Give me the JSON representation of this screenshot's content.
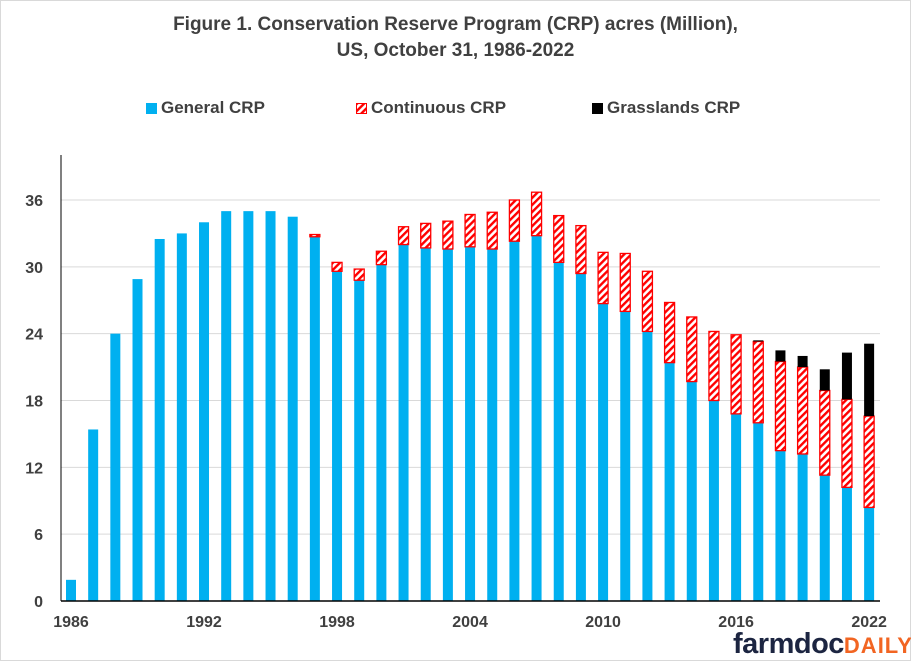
{
  "chart_data": {
    "type": "bar",
    "stacked": true,
    "title": "Figure 1.  Conservation Reserve Program (CRP) acres (Million), US, October 31, 1986-2022",
    "title_lines": [
      "Figure 1.  Conservation Reserve Program (CRP) acres (Million),",
      "US, October 31, 1986-2022"
    ],
    "xlabel": "",
    "ylabel": "",
    "ylim": [
      0,
      40
    ],
    "yticks": [
      0,
      6,
      12,
      18,
      24,
      30,
      36
    ],
    "xtick_labels": [
      "1986",
      "1992",
      "1998",
      "2004",
      "2010",
      "2016",
      "2022"
    ],
    "grid": true,
    "legend_position": "top",
    "categories": [
      1986,
      1987,
      1988,
      1989,
      1990,
      1991,
      1992,
      1993,
      1994,
      1995,
      1996,
      1997,
      1998,
      1999,
      2000,
      2001,
      2002,
      2003,
      2004,
      2005,
      2006,
      2007,
      2008,
      2009,
      2010,
      2011,
      2012,
      2013,
      2014,
      2015,
      2016,
      2017,
      2018,
      2019,
      2020,
      2021,
      2022
    ],
    "series": [
      {
        "name": "General CRP",
        "color": "#00b0f0",
        "pattern": "solid",
        "values": [
          1.9,
          15.4,
          24.0,
          28.9,
          32.5,
          33.0,
          34.0,
          35.0,
          35.0,
          35.0,
          34.5,
          32.7,
          29.6,
          28.8,
          30.2,
          32.0,
          31.7,
          31.6,
          31.8,
          31.6,
          32.3,
          32.8,
          30.4,
          29.4,
          26.7,
          26.0,
          24.2,
          21.4,
          19.7,
          18.0,
          16.8,
          16.0,
          13.5,
          13.2,
          11.3,
          10.2,
          8.4
        ]
      },
      {
        "name": "Continuous CRP",
        "color": "#ff0000",
        "pattern": "hatch",
        "values": [
          0,
          0,
          0,
          0,
          0,
          0,
          0,
          0,
          0,
          0,
          0,
          0.2,
          0.8,
          1.0,
          1.2,
          1.6,
          2.2,
          2.5,
          2.9,
          3.3,
          3.7,
          3.9,
          4.2,
          4.3,
          4.6,
          5.2,
          5.4,
          5.4,
          5.8,
          6.2,
          7.1,
          7.3,
          8.0,
          7.8,
          7.6,
          7.9,
          8.2
        ]
      },
      {
        "name": "Grasslands CRP",
        "color": "#000000",
        "pattern": "solid",
        "values": [
          0,
          0,
          0,
          0,
          0,
          0,
          0,
          0,
          0,
          0,
          0,
          0,
          0,
          0,
          0,
          0,
          0,
          0,
          0,
          0,
          0,
          0,
          0,
          0,
          0,
          0,
          0,
          0,
          0,
          0,
          0,
          0.1,
          1.0,
          1.0,
          1.9,
          4.2,
          6.5
        ]
      }
    ]
  },
  "logo": {
    "main": "farmdoc",
    "accent": "DAILY"
  }
}
